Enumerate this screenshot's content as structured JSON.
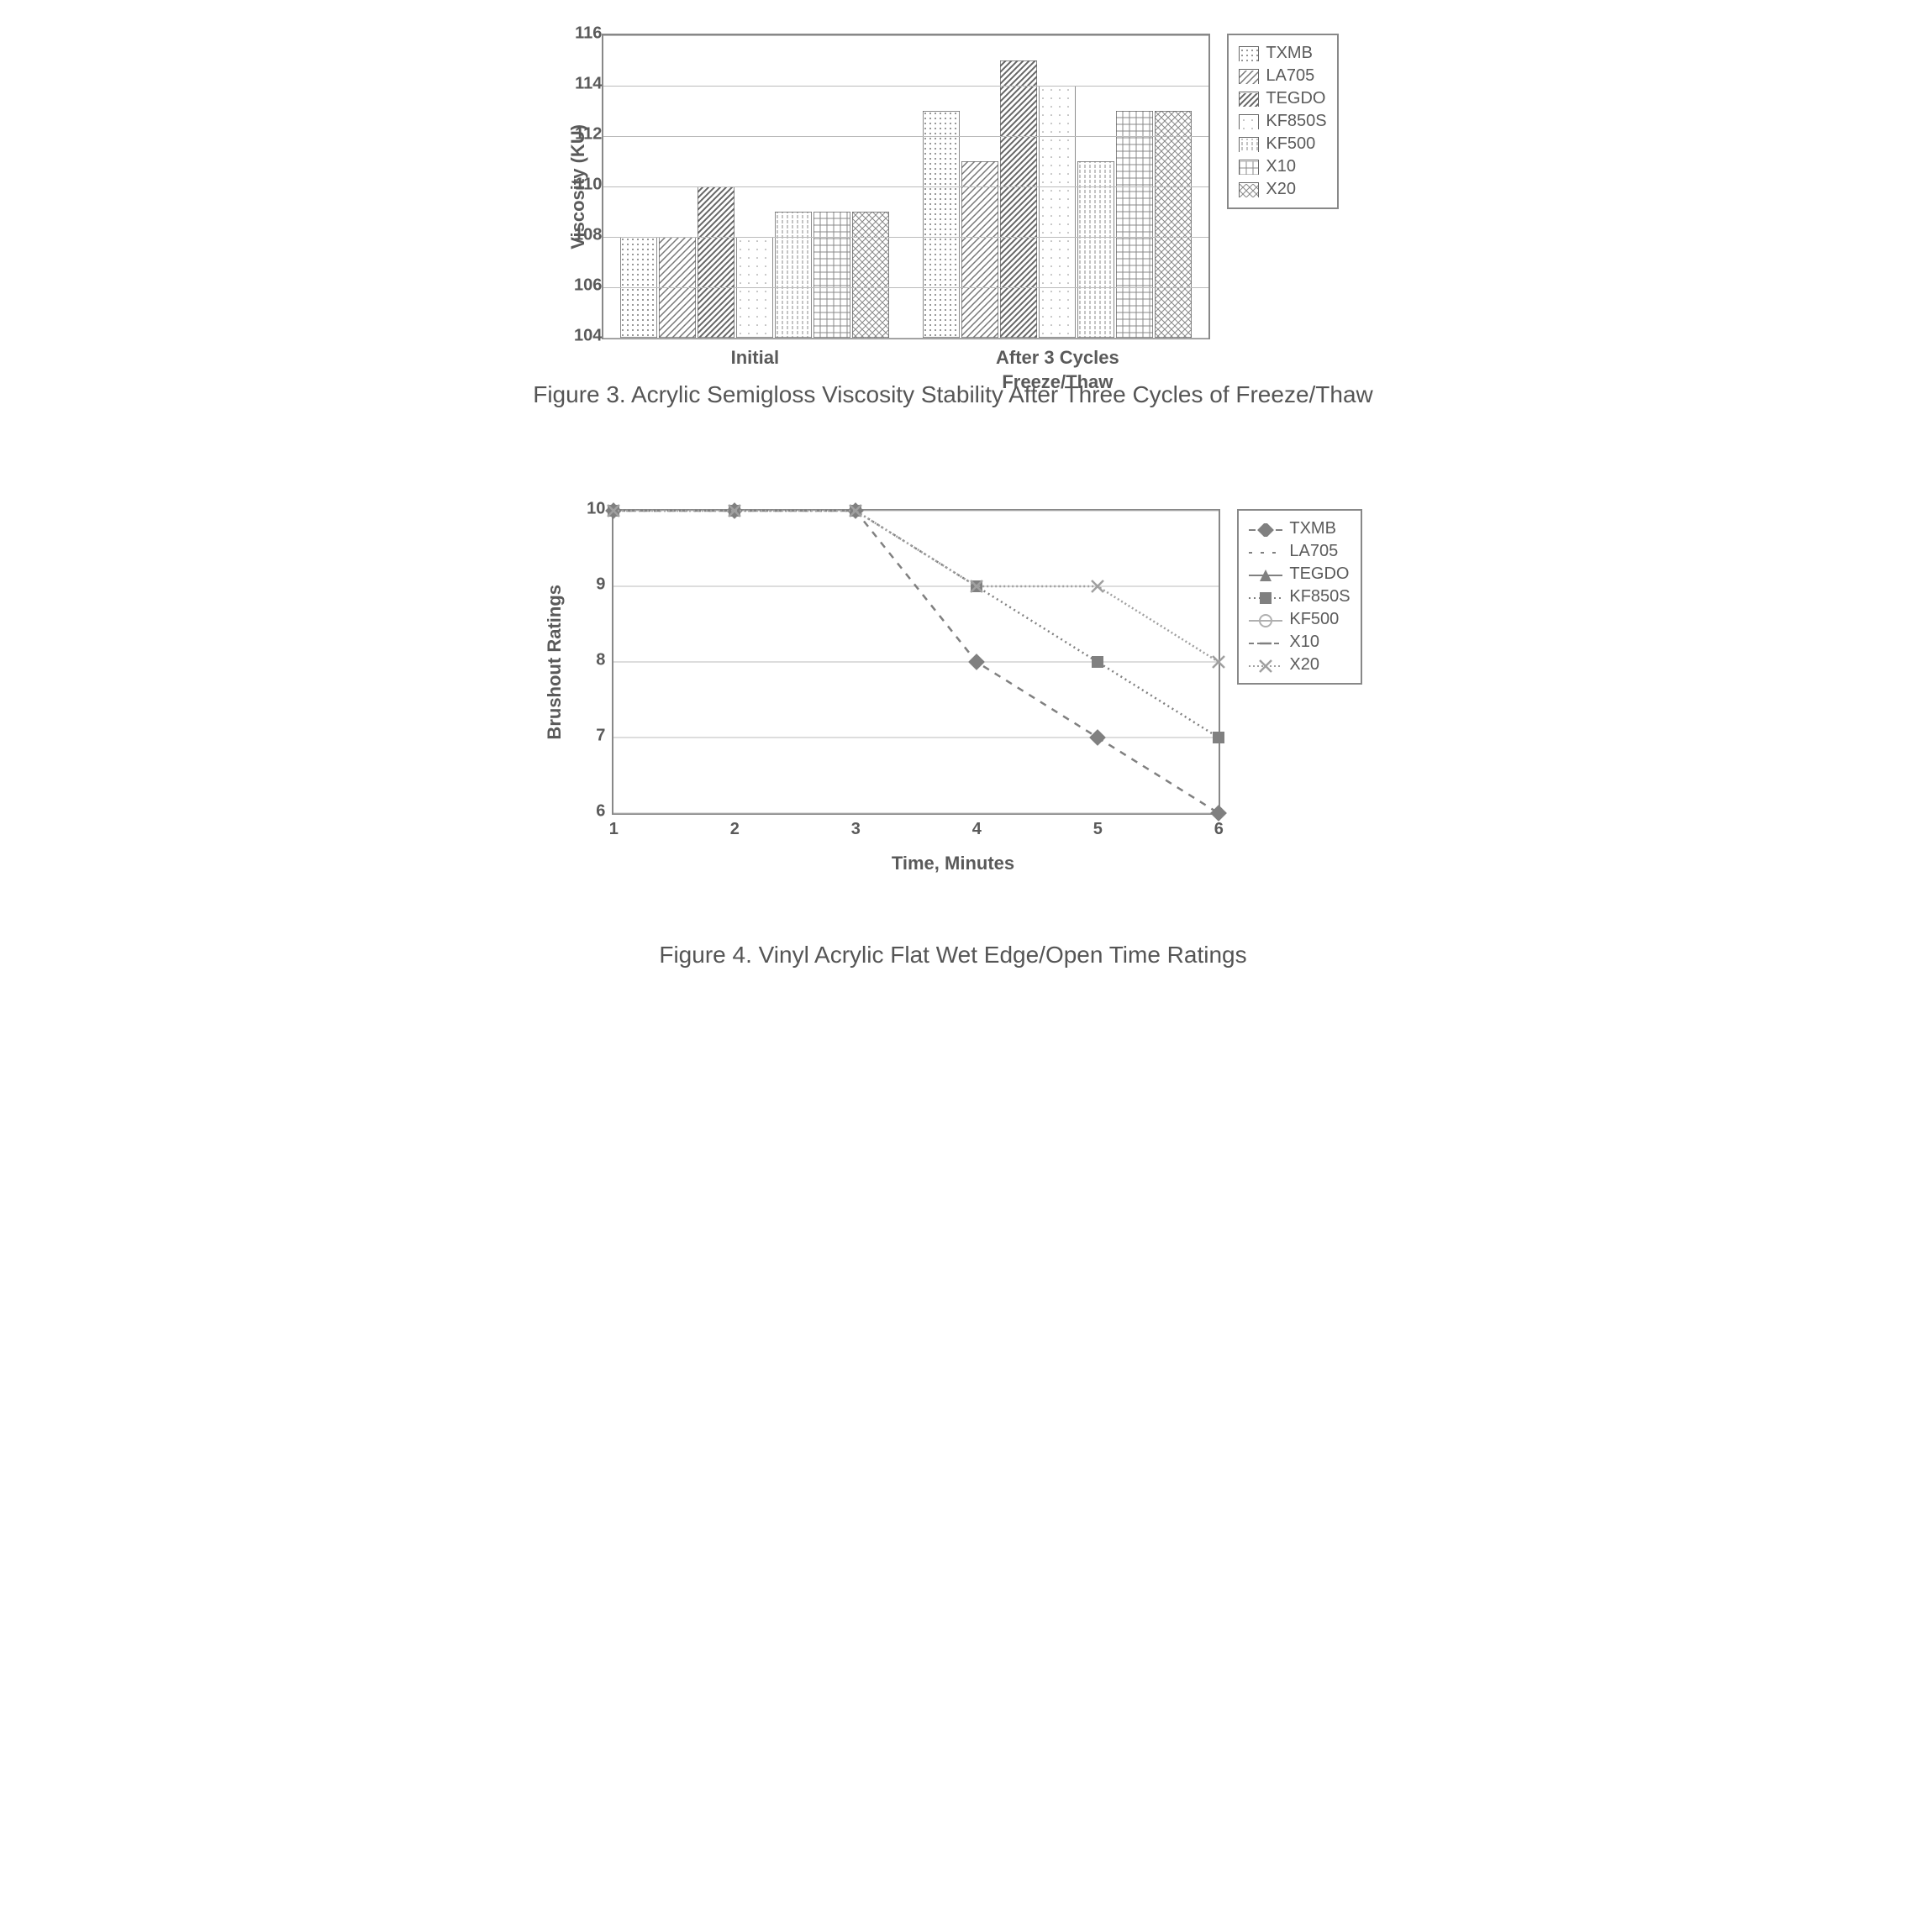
{
  "figure3": {
    "type": "bar",
    "ylabel": "Viscosity (KU)",
    "ylim": [
      104,
      116
    ],
    "ytick_step": 2,
    "groups": [
      "Initial",
      "After 3 Cycles\nFreeze/Thaw"
    ],
    "series": [
      {
        "name": "TXMB",
        "values": [
          108,
          113
        ],
        "pattern": "dots"
      },
      {
        "name": "LA705",
        "values": [
          108,
          111
        ],
        "pattern": "diag"
      },
      {
        "name": "TEGDO",
        "values": [
          110,
          115
        ],
        "pattern": "diag2"
      },
      {
        "name": "KF850S",
        "values": [
          108,
          114
        ],
        "pattern": "sparse-dots"
      },
      {
        "name": "KF500",
        "values": [
          109,
          111
        ],
        "pattern": "vlines"
      },
      {
        "name": "X10",
        "values": [
          109,
          113
        ],
        "pattern": "grid"
      },
      {
        "name": "X20",
        "values": [
          109,
          113
        ],
        "pattern": "cross"
      }
    ],
    "caption": "Figure 3. Acrylic Semigloss Viscosity Stability After Three Cycles of Freeze/Thaw",
    "border_color": "#888888",
    "grid_color": "#bbbbbb",
    "text_color": "#555555",
    "label_fontsize": 22
  },
  "figure4": {
    "type": "line",
    "ylabel": "Brushout Ratings",
    "xlabel": "Time, Minutes",
    "ylim": [
      6,
      10
    ],
    "ytick_step": 1,
    "xlim": [
      1,
      6
    ],
    "xtick_step": 1,
    "series": [
      {
        "name": "TXMB",
        "marker": "diamond",
        "dash": "8,8",
        "color": "#808080",
        "points": [
          [
            1,
            10
          ],
          [
            2,
            10
          ],
          [
            3,
            10
          ],
          [
            4,
            8
          ],
          [
            5,
            7
          ],
          [
            6,
            6
          ]
        ]
      },
      {
        "name": "LA705",
        "marker": "none",
        "dash": "4,10",
        "color": "#808080",
        "points": []
      },
      {
        "name": "TEGDO",
        "marker": "triangle",
        "dash": "none",
        "color": "#808080",
        "points": []
      },
      {
        "name": "KF850S",
        "marker": "square",
        "dash": "2,4",
        "color": "#808080",
        "points": [
          [
            1,
            10
          ],
          [
            2,
            10
          ],
          [
            3,
            10
          ],
          [
            4,
            9
          ],
          [
            5,
            8
          ],
          [
            6,
            7
          ]
        ]
      },
      {
        "name": "KF500",
        "marker": "circle-o",
        "dash": "none",
        "color": "#b0b0b0",
        "points": []
      },
      {
        "name": "X10",
        "marker": "dash",
        "dash": "6,4",
        "color": "#808080",
        "points": []
      },
      {
        "name": "X20",
        "marker": "x",
        "dash": "2,3",
        "color": "#a0a0a0",
        "points": [
          [
            1,
            10
          ],
          [
            2,
            10
          ],
          [
            3,
            10
          ],
          [
            4,
            9
          ],
          [
            5,
            9
          ],
          [
            6,
            8
          ]
        ]
      }
    ],
    "caption": "Figure 4. Vinyl Acrylic Flat Wet Edge/Open Time Ratings",
    "border_color": "#888888",
    "grid_color": "#bbbbbb",
    "text_color": "#555555",
    "label_fontsize": 22
  }
}
